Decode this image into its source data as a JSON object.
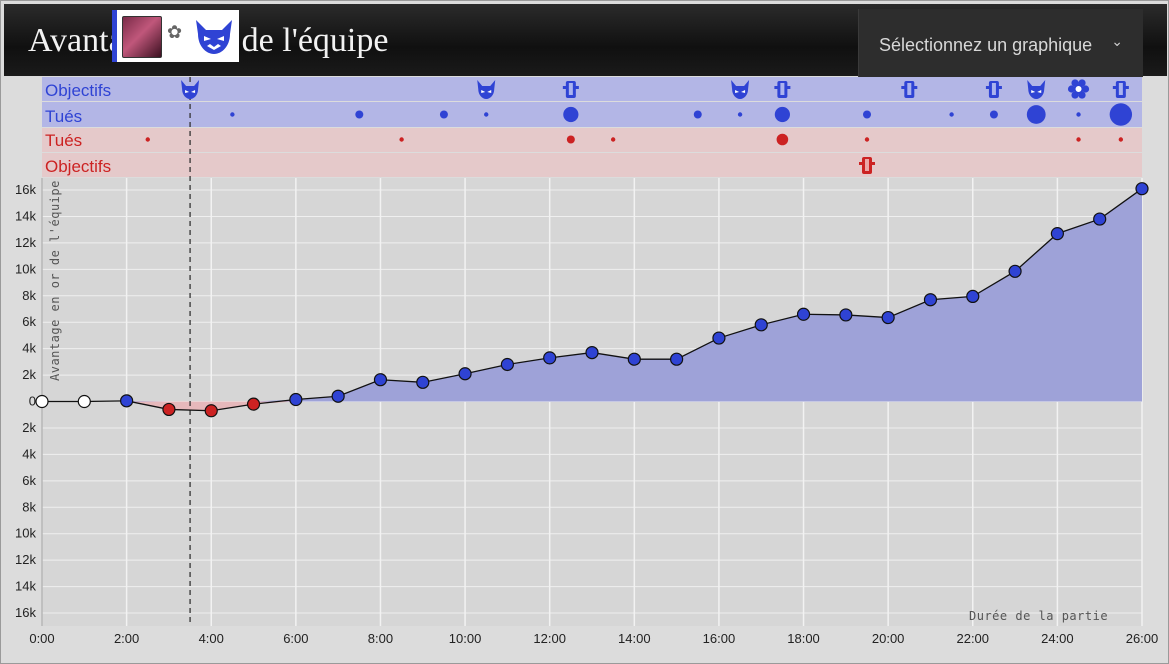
{
  "header": {
    "title": "Avantage en or de l'équipe",
    "select_label": "Sélectionnez un graphique",
    "chevron_icon": "chevron-down-icon"
  },
  "tooltip": {
    "accent_color": "#2f43d4",
    "icons": [
      "champion-portrait-icon",
      "bee-item-icon",
      "rift-herald-icon"
    ]
  },
  "rows": {
    "blue_objectives": "Objectifs",
    "blue_kills": "Tués",
    "red_kills": "Tués",
    "red_objectives": "Objectifs"
  },
  "colors": {
    "blue": "#2f43d4",
    "red": "#cc2222",
    "blue_row_bg": "#b3b6e6",
    "red_row_bg": "#e5c9ca",
    "area_blue": "#9ea2d8",
    "area_red": "#e6b8bb",
    "neutral_point": "#ffffff"
  },
  "chart_data": {
    "type": "area",
    "ylabel": "Avantage en or de l'équipe",
    "xlabel": "Durée de la partie",
    "xlim": [
      0,
      26
    ],
    "ylim": [
      -16000,
      16000
    ],
    "x_ticks": [
      "0:00",
      "2:00",
      "4:00",
      "6:00",
      "8:00",
      "10:00",
      "12:00",
      "14:00",
      "16:00",
      "18:00",
      "20:00",
      "22:00",
      "24:00",
      "26:00"
    ],
    "y_ticks": [
      "16k",
      "14k",
      "12k",
      "10k",
      "8k",
      "6k",
      "4k",
      "2k",
      "0",
      "2k",
      "4k",
      "6k",
      "8k",
      "10k",
      "12k",
      "14k",
      "16k"
    ],
    "marker_minute": 3.5,
    "points": [
      {
        "minute": 0,
        "gold": 0,
        "side": "neutral"
      },
      {
        "minute": 1,
        "gold": 0,
        "side": "neutral"
      },
      {
        "minute": 2,
        "gold": 50,
        "side": "blue"
      },
      {
        "minute": 3,
        "gold": -600,
        "side": "red"
      },
      {
        "minute": 4,
        "gold": -700,
        "side": "red"
      },
      {
        "minute": 5,
        "gold": -200,
        "side": "red"
      },
      {
        "minute": 6,
        "gold": 150,
        "side": "blue"
      },
      {
        "minute": 7,
        "gold": 400,
        "side": "blue"
      },
      {
        "minute": 8,
        "gold": 1650,
        "side": "blue"
      },
      {
        "minute": 9,
        "gold": 1450,
        "side": "blue"
      },
      {
        "minute": 10,
        "gold": 2100,
        "side": "blue"
      },
      {
        "minute": 11,
        "gold": 2800,
        "side": "blue"
      },
      {
        "minute": 12,
        "gold": 3300,
        "side": "blue"
      },
      {
        "minute": 13,
        "gold": 3700,
        "side": "blue"
      },
      {
        "minute": 14,
        "gold": 3200,
        "side": "blue"
      },
      {
        "minute": 15,
        "gold": 3200,
        "side": "blue"
      },
      {
        "minute": 16,
        "gold": 4800,
        "side": "blue"
      },
      {
        "minute": 17,
        "gold": 5800,
        "side": "blue"
      },
      {
        "minute": 18,
        "gold": 6600,
        "side": "blue"
      },
      {
        "minute": 19,
        "gold": 6550,
        "side": "blue"
      },
      {
        "minute": 20,
        "gold": 6350,
        "side": "blue"
      },
      {
        "minute": 21,
        "gold": 7700,
        "side": "blue"
      },
      {
        "minute": 22,
        "gold": 7950,
        "side": "blue"
      },
      {
        "minute": 23,
        "gold": 9850,
        "side": "blue"
      },
      {
        "minute": 24,
        "gold": 12700,
        "side": "blue"
      },
      {
        "minute": 25,
        "gold": 13800,
        "side": "blue"
      },
      {
        "minute": 26,
        "gold": 16100,
        "side": "blue"
      }
    ],
    "blue_objectives": [
      {
        "minute": 3.5,
        "icon": "rift-herald-icon"
      },
      {
        "minute": 10.5,
        "icon": "rift-herald-icon"
      },
      {
        "minute": 12.5,
        "icon": "tower-icon"
      },
      {
        "minute": 16.5,
        "icon": "rift-herald-icon"
      },
      {
        "minute": 17.5,
        "icon": "tower-icon"
      },
      {
        "minute": 20.5,
        "icon": "tower-icon"
      },
      {
        "minute": 22.5,
        "icon": "tower-icon"
      },
      {
        "minute": 23.5,
        "icon": "rift-herald-icon"
      },
      {
        "minute": 24.5,
        "icon": "inhibitor-icon"
      },
      {
        "minute": 25.5,
        "icon": "tower-icon"
      }
    ],
    "blue_kills": [
      {
        "minute": 4.5,
        "count": 1
      },
      {
        "minute": 7.5,
        "count": 2
      },
      {
        "minute": 9.5,
        "count": 2
      },
      {
        "minute": 10.5,
        "count": 1
      },
      {
        "minute": 12.5,
        "count": 4
      },
      {
        "minute": 15.5,
        "count": 2
      },
      {
        "minute": 16.5,
        "count": 1
      },
      {
        "minute": 17.5,
        "count": 4
      },
      {
        "minute": 19.5,
        "count": 2
      },
      {
        "minute": 21.5,
        "count": 1
      },
      {
        "minute": 22.5,
        "count": 2
      },
      {
        "minute": 23.5,
        "count": 5
      },
      {
        "minute": 24.5,
        "count": 1
      },
      {
        "minute": 25.5,
        "count": 6
      }
    ],
    "red_kills": [
      {
        "minute": 2.5,
        "count": 1
      },
      {
        "minute": 8.5,
        "count": 1
      },
      {
        "minute": 12.5,
        "count": 2
      },
      {
        "minute": 13.5,
        "count": 1
      },
      {
        "minute": 17.5,
        "count": 3
      },
      {
        "minute": 19.5,
        "count": 1
      },
      {
        "minute": 24.5,
        "count": 1
      },
      {
        "minute": 25.5,
        "count": 1
      }
    ],
    "red_objectives": [
      {
        "minute": 19.5,
        "icon": "tower-icon"
      }
    ]
  }
}
